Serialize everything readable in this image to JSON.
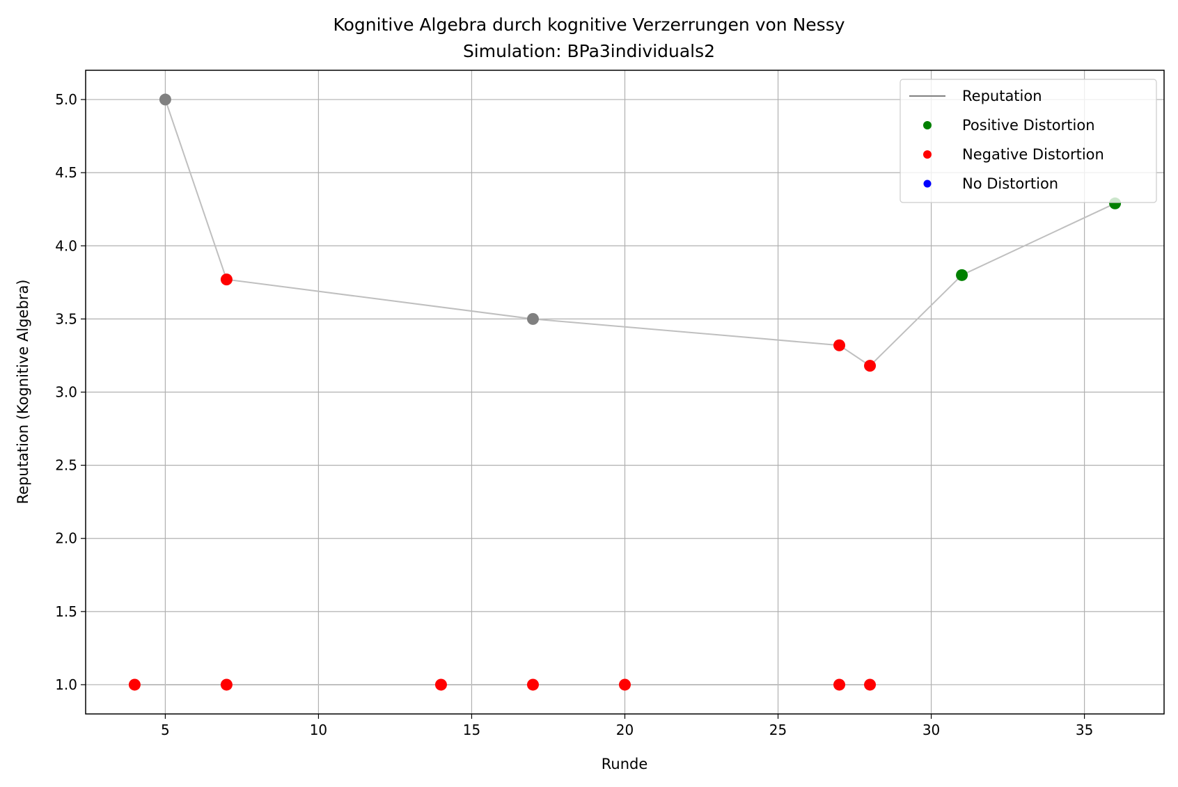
{
  "chart_data": {
    "type": "scatter",
    "title": "Kognitive Algebra durch kognitive Verzerrungen von Nessy",
    "subtitle": "Simulation: BPa3individuals2",
    "xlabel": "Runde",
    "ylabel": "Reputation (Kognitive Algebra)",
    "xlim": [
      2.4,
      37.6
    ],
    "ylim": [
      0.8,
      5.2
    ],
    "xticks": [
      5,
      10,
      15,
      20,
      25,
      30,
      35
    ],
    "yticks": [
      1.0,
      1.5,
      2.0,
      2.5,
      3.0,
      3.5,
      4.0,
      4.5,
      5.0
    ],
    "grid": true,
    "legend_position": "top-right",
    "colors": {
      "line": "#bfbfbf",
      "legend_line": "#808080",
      "positive": "#008000",
      "negative": "#ff0000",
      "none": "#0000ff",
      "neutral": "#808080",
      "grid": "#b0b0b0"
    },
    "legend": [
      {
        "label": "Reputation",
        "kind": "line"
      },
      {
        "label": "Positive Distortion",
        "kind": "positive"
      },
      {
        "label": "Negative Distortion",
        "kind": "negative"
      },
      {
        "label": "No Distortion",
        "kind": "none"
      }
    ],
    "series": [
      {
        "points": [
          {
            "x": 5,
            "y": 5.0,
            "kind": "neutral"
          },
          {
            "x": 7,
            "y": 3.77,
            "kind": "negative"
          },
          {
            "x": 17,
            "y": 3.5,
            "kind": "neutral"
          },
          {
            "x": 27,
            "y": 3.32,
            "kind": "negative"
          },
          {
            "x": 28,
            "y": 3.18,
            "kind": "negative"
          },
          {
            "x": 31,
            "y": 3.8,
            "kind": "positive"
          },
          {
            "x": 36,
            "y": 4.29,
            "kind": "positive"
          }
        ]
      },
      {
        "points": [
          {
            "x": 4,
            "y": 1.0,
            "kind": "negative"
          },
          {
            "x": 7,
            "y": 1.0,
            "kind": "negative"
          },
          {
            "x": 14,
            "y": 1.0,
            "kind": "negative"
          },
          {
            "x": 17,
            "y": 1.0,
            "kind": "negative"
          },
          {
            "x": 20,
            "y": 1.0,
            "kind": "negative"
          },
          {
            "x": 27,
            "y": 1.0,
            "kind": "negative"
          },
          {
            "x": 28,
            "y": 1.0,
            "kind": "negative"
          }
        ]
      }
    ]
  }
}
